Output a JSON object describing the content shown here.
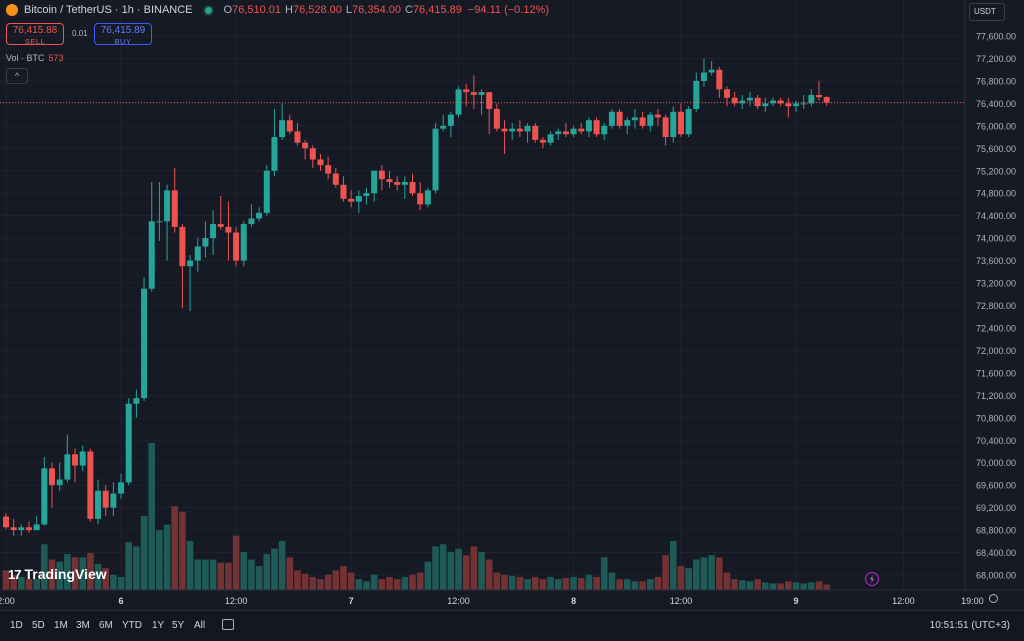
{
  "header": {
    "symbol": "Bitcoin / TetherUS · 1h · BINANCE",
    "open_label": "O",
    "open": "76,510.01",
    "high_label": "H",
    "high": "76,528.00",
    "low_label": "L",
    "low": "76,354.00",
    "close_label": "C",
    "close": "76,415.89",
    "change": "−94.11 (−0.12%)"
  },
  "trade": {
    "sell_price": "76,415.88",
    "sell_label": "SELL",
    "spread": "0.01",
    "buy_price": "76,415.89",
    "buy_label": "BUY"
  },
  "volume_legend": {
    "label": "Vol · BTC",
    "value": "573"
  },
  "collapse_glyph": "^",
  "currency": "USDT",
  "brand": {
    "mark": "17",
    "name": "TradingView"
  },
  "bottom_bar": {
    "timeframes": [
      "1D",
      "5D",
      "1M",
      "3M",
      "6M",
      "YTD",
      "1Y",
      "5Y",
      "All"
    ],
    "clock": "10:51:51 (UTC+3)"
  },
  "colors": {
    "background": "#161a25",
    "up": "#26a69a",
    "down": "#ef5350",
    "grid": "#1f2330",
    "last_price": "#ef5350"
  },
  "icons": [
    "bitcoin-logo-icon",
    "market-open-icon",
    "collapse-chevron-icon",
    "calendar-goto-icon",
    "settings-gear-icon",
    "flash-icon"
  ],
  "chart_data": {
    "type": "candlestick",
    "symbol": "BTCUSDT",
    "interval": "1h",
    "last_price": 76415.89,
    "ylim": [
      67800,
      77900
    ],
    "y_ticks": [
      "77,600.00",
      "77,200.00",
      "76,800.00",
      "76,400.00",
      "76,000.00",
      "75,600.00",
      "75,200.00",
      "74,800.00",
      "74,400.00",
      "74,000.00",
      "73,600.00",
      "73,200.00",
      "72,800.00",
      "72,400.00",
      "72,000.00",
      "71,600.00",
      "71,200.00",
      "70,800.00",
      "70,400.00",
      "70,000.00",
      "69,600.00",
      "69,200.00",
      "68,800.00",
      "68,400.00",
      "68,000.00"
    ],
    "x_ticks": [
      "2:00",
      "6",
      "12:00",
      "7",
      "12:00",
      "8",
      "12:00",
      "9",
      "12:00",
      "19:00"
    ],
    "candles": [
      {
        "o": 69040,
        "h": 69100,
        "l": 68820,
        "c": 68850,
        "v": 18
      },
      {
        "o": 68850,
        "h": 69000,
        "l": 68700,
        "c": 68800,
        "v": 14
      },
      {
        "o": 68800,
        "h": 68900,
        "l": 68700,
        "c": 68850,
        "v": 12
      },
      {
        "o": 68850,
        "h": 68950,
        "l": 68750,
        "c": 68800,
        "v": 10
      },
      {
        "o": 68800,
        "h": 69050,
        "l": 68800,
        "c": 68900,
        "v": 10
      },
      {
        "o": 68900,
        "h": 70100,
        "l": 68880,
        "c": 69900,
        "v": 42
      },
      {
        "o": 69900,
        "h": 70000,
        "l": 69200,
        "c": 69600,
        "v": 28
      },
      {
        "o": 69600,
        "h": 70000,
        "l": 69500,
        "c": 69700,
        "v": 26
      },
      {
        "o": 69700,
        "h": 70500,
        "l": 69650,
        "c": 70150,
        "v": 33
      },
      {
        "o": 70150,
        "h": 70250,
        "l": 69650,
        "c": 69950,
        "v": 30
      },
      {
        "o": 69950,
        "h": 70300,
        "l": 69850,
        "c": 70200,
        "v": 30
      },
      {
        "o": 70200,
        "h": 70250,
        "l": 68950,
        "c": 69000,
        "v": 34
      },
      {
        "o": 69000,
        "h": 69700,
        "l": 68900,
        "c": 69500,
        "v": 24
      },
      {
        "o": 69500,
        "h": 69600,
        "l": 69050,
        "c": 69200,
        "v": 20
      },
      {
        "o": 69200,
        "h": 69650,
        "l": 69050,
        "c": 69450,
        "v": 14
      },
      {
        "o": 69450,
        "h": 69800,
        "l": 69350,
        "c": 69650,
        "v": 12
      },
      {
        "o": 69650,
        "h": 71150,
        "l": 69600,
        "c": 71050,
        "v": 44
      },
      {
        "o": 71050,
        "h": 71300,
        "l": 70800,
        "c": 71150,
        "v": 40
      },
      {
        "o": 71150,
        "h": 73300,
        "l": 71100,
        "c": 73100,
        "v": 68
      },
      {
        "o": 73100,
        "h": 75000,
        "l": 73050,
        "c": 74300,
        "v": 135
      },
      {
        "o": 74300,
        "h": 75000,
        "l": 73950,
        "c": 74300,
        "v": 55
      },
      {
        "o": 74300,
        "h": 74950,
        "l": 73600,
        "c": 74850,
        "v": 60
      },
      {
        "o": 74850,
        "h": 75250,
        "l": 74100,
        "c": 74200,
        "v": 77
      },
      {
        "o": 74200,
        "h": 74250,
        "l": 72750,
        "c": 73500,
        "v": 72
      },
      {
        "o": 73500,
        "h": 73700,
        "l": 72700,
        "c": 73600,
        "v": 45
      },
      {
        "o": 73600,
        "h": 74000,
        "l": 73400,
        "c": 73850,
        "v": 28
      },
      {
        "o": 73850,
        "h": 74300,
        "l": 73650,
        "c": 74000,
        "v": 28
      },
      {
        "o": 74000,
        "h": 74500,
        "l": 73700,
        "c": 74250,
        "v": 28
      },
      {
        "o": 74250,
        "h": 74750,
        "l": 74150,
        "c": 74200,
        "v": 25
      },
      {
        "o": 74200,
        "h": 74650,
        "l": 73600,
        "c": 74100,
        "v": 25
      },
      {
        "o": 74100,
        "h": 74200,
        "l": 73500,
        "c": 73600,
        "v": 50
      },
      {
        "o": 73600,
        "h": 74300,
        "l": 73500,
        "c": 74250,
        "v": 35
      },
      {
        "o": 74250,
        "h": 74600,
        "l": 74200,
        "c": 74350,
        "v": 28
      },
      {
        "o": 74350,
        "h": 74550,
        "l": 74300,
        "c": 74450,
        "v": 22
      },
      {
        "o": 74450,
        "h": 75300,
        "l": 74400,
        "c": 75200,
        "v": 33
      },
      {
        "o": 75200,
        "h": 76300,
        "l": 75100,
        "c": 75800,
        "v": 38
      },
      {
        "o": 75800,
        "h": 76400,
        "l": 75750,
        "c": 76100,
        "v": 45
      },
      {
        "o": 76100,
        "h": 76200,
        "l": 75850,
        "c": 75900,
        "v": 30
      },
      {
        "o": 75900,
        "h": 76050,
        "l": 75650,
        "c": 75700,
        "v": 18
      },
      {
        "o": 75700,
        "h": 75750,
        "l": 75400,
        "c": 75600,
        "v": 15
      },
      {
        "o": 75600,
        "h": 75650,
        "l": 75250,
        "c": 75400,
        "v": 12
      },
      {
        "o": 75400,
        "h": 75500,
        "l": 75200,
        "c": 75300,
        "v": 10
      },
      {
        "o": 75300,
        "h": 75450,
        "l": 75050,
        "c": 75150,
        "v": 14
      },
      {
        "o": 75150,
        "h": 75250,
        "l": 74900,
        "c": 74950,
        "v": 18
      },
      {
        "o": 74950,
        "h": 75100,
        "l": 74650,
        "c": 74700,
        "v": 22
      },
      {
        "o": 74700,
        "h": 74850,
        "l": 74550,
        "c": 74650,
        "v": 16
      },
      {
        "o": 74650,
        "h": 74850,
        "l": 74450,
        "c": 74750,
        "v": 10
      },
      {
        "o": 74750,
        "h": 74900,
        "l": 74600,
        "c": 74800,
        "v": 8
      },
      {
        "o": 74800,
        "h": 75100,
        "l": 74650,
        "c": 75200,
        "v": 14
      },
      {
        "o": 75200,
        "h": 75300,
        "l": 74850,
        "c": 75050,
        "v": 10
      },
      {
        "o": 75050,
        "h": 75200,
        "l": 74900,
        "c": 75000,
        "v": 12
      },
      {
        "o": 75000,
        "h": 75100,
        "l": 74850,
        "c": 74950,
        "v": 10
      },
      {
        "o": 74950,
        "h": 75100,
        "l": 74700,
        "c": 75000,
        "v": 12
      },
      {
        "o": 75000,
        "h": 75150,
        "l": 74750,
        "c": 74800,
        "v": 14
      },
      {
        "o": 74800,
        "h": 75000,
        "l": 74500,
        "c": 74600,
        "v": 16
      },
      {
        "o": 74600,
        "h": 74900,
        "l": 74550,
        "c": 74850,
        "v": 26
      },
      {
        "o": 74850,
        "h": 76050,
        "l": 74800,
        "c": 75950,
        "v": 40
      },
      {
        "o": 75950,
        "h": 76200,
        "l": 75900,
        "c": 76000,
        "v": 42
      },
      {
        "o": 76000,
        "h": 76250,
        "l": 75800,
        "c": 76200,
        "v": 35
      },
      {
        "o": 76200,
        "h": 76700,
        "l": 76150,
        "c": 76650,
        "v": 38
      },
      {
        "o": 76650,
        "h": 76750,
        "l": 76350,
        "c": 76600,
        "v": 32
      },
      {
        "o": 76600,
        "h": 76900,
        "l": 76300,
        "c": 76550,
        "v": 40
      },
      {
        "o": 76550,
        "h": 76650,
        "l": 76200,
        "c": 76600,
        "v": 35
      },
      {
        "o": 76600,
        "h": 76600,
        "l": 75850,
        "c": 76300,
        "v": 28
      },
      {
        "o": 76300,
        "h": 76400,
        "l": 75900,
        "c": 75950,
        "v": 16
      },
      {
        "o": 75950,
        "h": 76100,
        "l": 75500,
        "c": 75900,
        "v": 14
      },
      {
        "o": 75900,
        "h": 76050,
        "l": 75750,
        "c": 75950,
        "v": 13
      },
      {
        "o": 75950,
        "h": 76100,
        "l": 75800,
        "c": 75900,
        "v": 12
      },
      {
        "o": 75900,
        "h": 76050,
        "l": 75700,
        "c": 76000,
        "v": 10
      },
      {
        "o": 76000,
        "h": 76050,
        "l": 75700,
        "c": 75750,
        "v": 12
      },
      {
        "o": 75750,
        "h": 75800,
        "l": 75600,
        "c": 75700,
        "v": 10
      },
      {
        "o": 75700,
        "h": 75900,
        "l": 75650,
        "c": 75850,
        "v": 12
      },
      {
        "o": 75850,
        "h": 75950,
        "l": 75750,
        "c": 75900,
        "v": 10
      },
      {
        "o": 75900,
        "h": 76050,
        "l": 75800,
        "c": 75850,
        "v": 11
      },
      {
        "o": 75850,
        "h": 76000,
        "l": 75800,
        "c": 75950,
        "v": 12
      },
      {
        "o": 75950,
        "h": 76050,
        "l": 75850,
        "c": 75900,
        "v": 11
      },
      {
        "o": 75900,
        "h": 76150,
        "l": 75800,
        "c": 76100,
        "v": 14
      },
      {
        "o": 76100,
        "h": 76150,
        "l": 75800,
        "c": 75850,
        "v": 12
      },
      {
        "o": 75850,
        "h": 76050,
        "l": 75750,
        "c": 76000,
        "v": 30
      },
      {
        "o": 76000,
        "h": 76300,
        "l": 75950,
        "c": 76250,
        "v": 16
      },
      {
        "o": 76250,
        "h": 76300,
        "l": 75950,
        "c": 76000,
        "v": 10
      },
      {
        "o": 76000,
        "h": 76150,
        "l": 75850,
        "c": 76100,
        "v": 10
      },
      {
        "o": 76100,
        "h": 76300,
        "l": 75950,
        "c": 76150,
        "v": 8
      },
      {
        "o": 76150,
        "h": 76250,
        "l": 75950,
        "c": 76000,
        "v": 8
      },
      {
        "o": 76000,
        "h": 76250,
        "l": 75900,
        "c": 76200,
        "v": 10
      },
      {
        "o": 76200,
        "h": 76300,
        "l": 76000,
        "c": 76150,
        "v": 12
      },
      {
        "o": 76150,
        "h": 76200,
        "l": 75650,
        "c": 75800,
        "v": 32
      },
      {
        "o": 75800,
        "h": 76350,
        "l": 75700,
        "c": 76250,
        "v": 45
      },
      {
        "o": 76250,
        "h": 76400,
        "l": 75800,
        "c": 75850,
        "v": 22
      },
      {
        "o": 75850,
        "h": 76350,
        "l": 75800,
        "c": 76300,
        "v": 20
      },
      {
        "o": 76300,
        "h": 76950,
        "l": 76250,
        "c": 76800,
        "v": 28
      },
      {
        "o": 76800,
        "h": 77200,
        "l": 76700,
        "c": 76950,
        "v": 30
      },
      {
        "o": 76950,
        "h": 77150,
        "l": 76900,
        "c": 77000,
        "v": 32
      },
      {
        "o": 77000,
        "h": 77050,
        "l": 76500,
        "c": 76650,
        "v": 30
      },
      {
        "o": 76650,
        "h": 76700,
        "l": 76350,
        "c": 76500,
        "v": 16
      },
      {
        "o": 76500,
        "h": 76600,
        "l": 76350,
        "c": 76400,
        "v": 10
      },
      {
        "o": 76400,
        "h": 76550,
        "l": 76300,
        "c": 76450,
        "v": 9
      },
      {
        "o": 76450,
        "h": 76600,
        "l": 76350,
        "c": 76500,
        "v": 8
      },
      {
        "o": 76500,
        "h": 76550,
        "l": 76300,
        "c": 76350,
        "v": 10
      },
      {
        "o": 76350,
        "h": 76500,
        "l": 76250,
        "c": 76400,
        "v": 7
      },
      {
        "o": 76400,
        "h": 76500,
        "l": 76350,
        "c": 76450,
        "v": 6
      },
      {
        "o": 76450,
        "h": 76500,
        "l": 76350,
        "c": 76400,
        "v": 6
      },
      {
        "o": 76400,
        "h": 76500,
        "l": 76150,
        "c": 76350,
        "v": 8
      },
      {
        "o": 76350,
        "h": 76450,
        "l": 76250,
        "c": 76400,
        "v": 7
      },
      {
        "o": 76400,
        "h": 76550,
        "l": 76300,
        "c": 76400,
        "v": 6
      },
      {
        "o": 76400,
        "h": 76650,
        "l": 76350,
        "c": 76550,
        "v": 7
      },
      {
        "o": 76550,
        "h": 76800,
        "l": 76450,
        "c": 76510,
        "v": 8
      },
      {
        "o": 76510.01,
        "h": 76528,
        "l": 76354,
        "c": 76415.89,
        "v": 5
      }
    ]
  }
}
